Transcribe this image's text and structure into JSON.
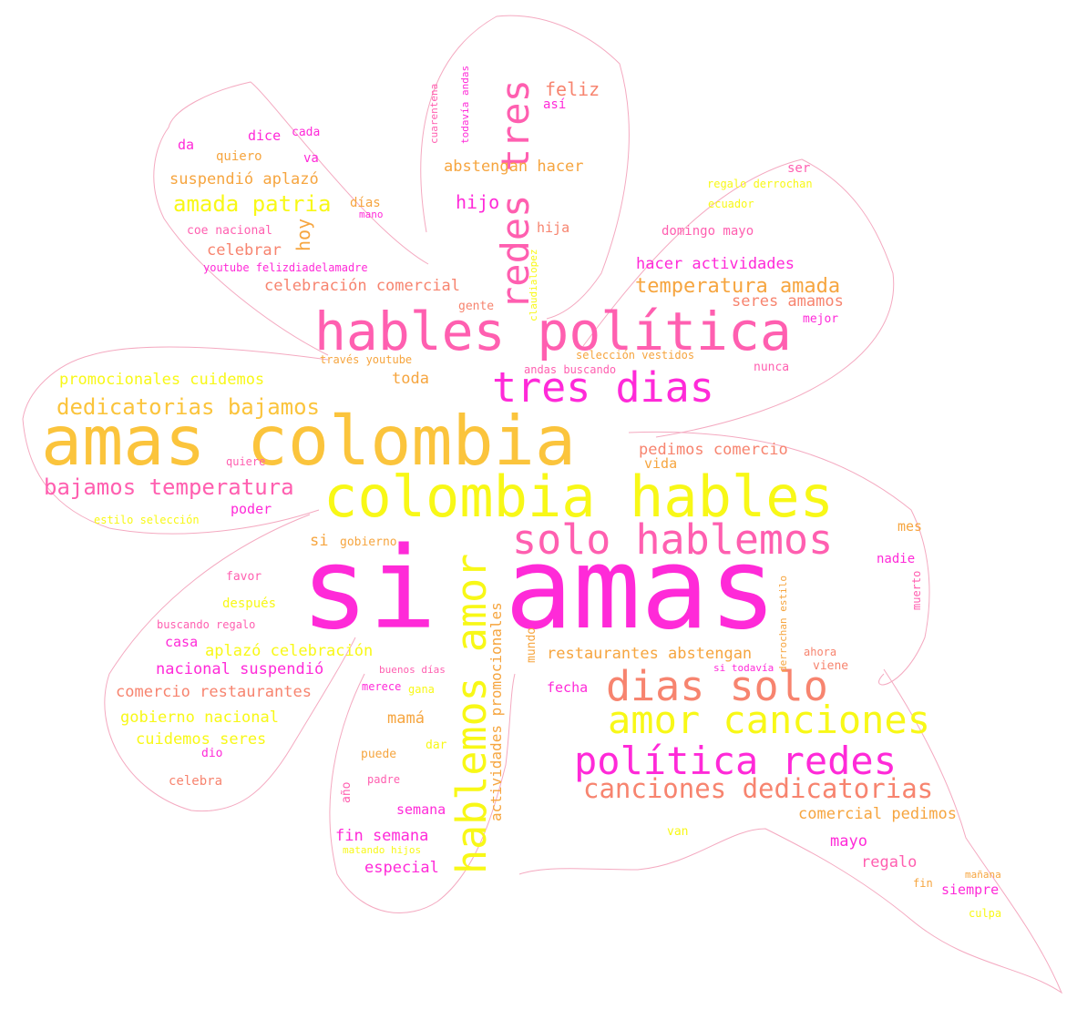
{
  "palette": {
    "magenta": "#ff2ad8",
    "pink": "#ff5fb0",
    "salmon": "#f7846f",
    "orange": "#f6a53f",
    "gold": "#fbc43c",
    "yellow": "#f8f817"
  },
  "words": [
    {
      "text": "si amas",
      "color": "#ff2ad8"
    },
    {
      "text": "amas colombia",
      "color": "#fbc43c"
    },
    {
      "text": "colombia hables",
      "color": "#f8f817"
    },
    {
      "text": "hables política",
      "color": "#ff5fb0"
    },
    {
      "text": "tres dias",
      "color": "#ff2ad8"
    },
    {
      "text": "solo hablemos",
      "color": "#ff5fb0"
    },
    {
      "text": "dias solo",
      "color": "#f7846f"
    },
    {
      "text": "amor canciones",
      "color": "#f8f817"
    },
    {
      "text": "política redes",
      "color": "#ff2ad8"
    },
    {
      "text": "canciones dedicatorias",
      "color": "#f7846f"
    },
    {
      "text": "hablemos amor",
      "color": "#f8f817"
    },
    {
      "text": "redes tres",
      "color": "#ff5fb0"
    },
    {
      "text": "dedicatorias bajamos",
      "color": "#fbc43c"
    },
    {
      "text": "bajamos temperatura",
      "color": "#ff5fb0"
    },
    {
      "text": "amada patria",
      "color": "#f8f817"
    },
    {
      "text": "temperatura amada",
      "color": "#f6a53f"
    },
    {
      "text": "promocionales cuidemos",
      "color": "#f8f817"
    },
    {
      "text": "hacer actividades",
      "color": "#ff2ad8"
    },
    {
      "text": "celebración comercial",
      "color": "#f7846f"
    },
    {
      "text": "seres amamos",
      "color": "#f7846f"
    },
    {
      "text": "abstengan hacer",
      "color": "#f6a53f"
    },
    {
      "text": "suspendió aplazó",
      "color": "#f6a53f"
    },
    {
      "text": "pedimos comercio",
      "color": "#f7846f"
    },
    {
      "text": "restaurantes abstengan",
      "color": "#f6a53f"
    },
    {
      "text": "aplazó celebración",
      "color": "#f8f817"
    },
    {
      "text": "nacional suspendió",
      "color": "#ff2ad8"
    },
    {
      "text": "comercio restaurantes",
      "color": "#f7846f"
    },
    {
      "text": "gobierno nacional",
      "color": "#f8f817"
    },
    {
      "text": "cuidemos seres",
      "color": "#f8f817"
    },
    {
      "text": "comercial pedimos",
      "color": "#f6a53f"
    },
    {
      "text": "actividades promocionales",
      "color": "#f6a53f"
    },
    {
      "text": "feliz",
      "color": "#f7846f"
    },
    {
      "text": "hijo",
      "color": "#ff2ad8"
    },
    {
      "text": "hoy",
      "color": "#f6a53f"
    },
    {
      "text": "celebrar",
      "color": "#f7846f"
    },
    {
      "text": "toda",
      "color": "#f6a53f"
    },
    {
      "text": "mamá",
      "color": "#f6a53f"
    },
    {
      "text": "mayo",
      "color": "#ff2ad8"
    },
    {
      "text": "regalo",
      "color": "#ff5fb0"
    },
    {
      "text": "si",
      "color": "#f6a53f"
    },
    {
      "text": "fin semana",
      "color": "#ff2ad8"
    },
    {
      "text": "especial",
      "color": "#ff2ad8"
    },
    {
      "text": "semana",
      "color": "#ff2ad8"
    },
    {
      "text": "fecha",
      "color": "#ff2ad8"
    },
    {
      "text": "casa",
      "color": "#ff2ad8"
    },
    {
      "text": "poder",
      "color": "#ff2ad8"
    },
    {
      "text": "mes",
      "color": "#f6a53f"
    },
    {
      "text": "nadie",
      "color": "#ff2ad8"
    },
    {
      "text": "siempre",
      "color": "#ff2ad8"
    },
    {
      "text": "vida",
      "color": "#f6a53f"
    },
    {
      "text": "hija",
      "color": "#f7846f"
    },
    {
      "text": "así",
      "color": "#ff2ad8"
    },
    {
      "text": "dice",
      "color": "#ff2ad8"
    },
    {
      "text": "cada",
      "color": "#ff2ad8"
    },
    {
      "text": "da",
      "color": "#ff2ad8"
    },
    {
      "text": "quiero",
      "color": "#f6a53f"
    },
    {
      "text": "va",
      "color": "#ff2ad8"
    },
    {
      "text": "días",
      "color": "#f6a53f"
    },
    {
      "text": "mano",
      "color": "#ff2ad8"
    },
    {
      "text": "coe nacional",
      "color": "#ff5fb0"
    },
    {
      "text": "youtube felizdiadelamadre",
      "color": "#ff2ad8"
    },
    {
      "text": "ser",
      "color": "#ff5fb0"
    },
    {
      "text": "regalo derrochan",
      "color": "#f8f817"
    },
    {
      "text": "ecuador",
      "color": "#f8f817"
    },
    {
      "text": "domingo mayo",
      "color": "#ff5fb0"
    },
    {
      "text": "mejor",
      "color": "#ff2ad8"
    },
    {
      "text": "nunca",
      "color": "#ff5fb0"
    },
    {
      "text": "gente",
      "color": "#f7846f"
    },
    {
      "text": "selección vestidos",
      "color": "#f6a53f"
    },
    {
      "text": "través youtube",
      "color": "#f6a53f"
    },
    {
      "text": "andas buscando",
      "color": "#ff5fb0"
    },
    {
      "text": "quiere",
      "color": "#ff5fb0"
    },
    {
      "text": "estilo selección",
      "color": "#f8f817"
    },
    {
      "text": "gobierno",
      "color": "#f6a53f"
    },
    {
      "text": "favor",
      "color": "#ff5fb0"
    },
    {
      "text": "después",
      "color": "#f8f817"
    },
    {
      "text": "buscando regalo",
      "color": "#ff5fb0"
    },
    {
      "text": "merece",
      "color": "#ff2ad8"
    },
    {
      "text": "gana",
      "color": "#f8f817"
    },
    {
      "text": "buenos días",
      "color": "#ff5fb0"
    },
    {
      "text": "dio",
      "color": "#ff2ad8"
    },
    {
      "text": "puede",
      "color": "#f6a53f"
    },
    {
      "text": "dar",
      "color": "#f8f817"
    },
    {
      "text": "padre",
      "color": "#ff5fb0"
    },
    {
      "text": "celebra",
      "color": "#f7846f"
    },
    {
      "text": "matando hijos",
      "color": "#f8f817"
    },
    {
      "text": "van",
      "color": "#f8f817"
    },
    {
      "text": "ahora",
      "color": "#f7846f"
    },
    {
      "text": "viene",
      "color": "#f7846f"
    },
    {
      "text": "si todavía",
      "color": "#ff2ad8"
    },
    {
      "text": "mañana",
      "color": "#f6a53f"
    },
    {
      "text": "fin",
      "color": "#f6a53f"
    },
    {
      "text": "culpa",
      "color": "#f8f817"
    },
    {
      "text": "cuarentena",
      "color": "#ff5fb0"
    },
    {
      "text": "todavía andas",
      "color": "#ff2ad8"
    },
    {
      "text": "claudialopez",
      "color": "#f8f817"
    },
    {
      "text": "mundo",
      "color": "#f6a53f"
    },
    {
      "text": "año",
      "color": "#ff5fb0"
    },
    {
      "text": "derrochan estilo",
      "color": "#f6a53f"
    },
    {
      "text": "muerto",
      "color": "#ff5fb0"
    }
  ]
}
